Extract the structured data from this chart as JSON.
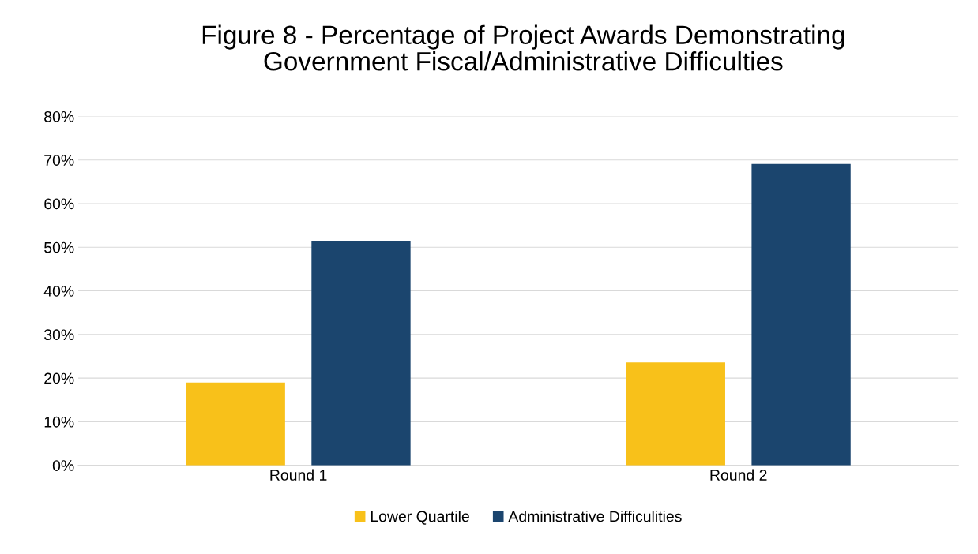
{
  "chart_data": {
    "type": "bar",
    "title": "Figure 8 - Percentage of Project Awards Demonstrating\nGovernment Fiscal/Administrative Difficulties",
    "categories": [
      "Round 1",
      "Round 2"
    ],
    "series": [
      {
        "name": "Lower Quartile",
        "color": "#f8c11a",
        "values": [
          19.0,
          23.6
        ]
      },
      {
        "name": "Administrative Difficulities",
        "color": "#1b456e",
        "values": [
          51.4,
          69.1
        ]
      }
    ],
    "ylim": [
      0,
      80
    ],
    "yticks": [
      {
        "value": 0,
        "label": "0%"
      },
      {
        "value": 10,
        "label": "10%"
      },
      {
        "value": 20,
        "label": "20%"
      },
      {
        "value": 30,
        "label": "30%"
      },
      {
        "value": 40,
        "label": "40%"
      },
      {
        "value": 50,
        "label": "50%"
      },
      {
        "value": 60,
        "label": "60%"
      },
      {
        "value": 70,
        "label": "70%"
      },
      {
        "value": 80,
        "label": "80%"
      }
    ],
    "grid": "y",
    "legend": "bottom"
  }
}
